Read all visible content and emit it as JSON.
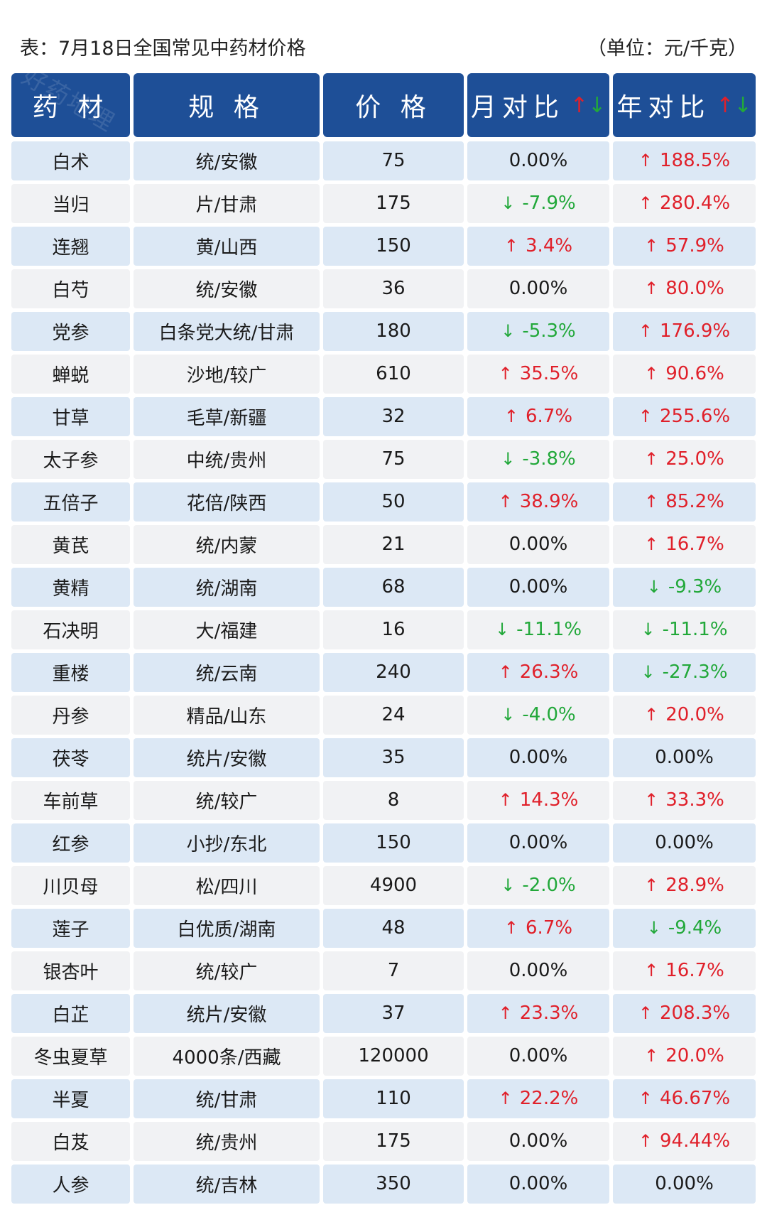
{
  "caption": {
    "title": "表：7月18日全国常见中药材价格",
    "unit": "（单位：元/千克）"
  },
  "watermark": "好药地理",
  "header": {
    "herb": "药 材",
    "spec": "规 格",
    "price": "价 格",
    "month": "月对比",
    "year": "年对比",
    "arrow_up": "↑",
    "arrow_down": "↓"
  },
  "colors": {
    "header_bg": "#1e4f97",
    "row_odd": "#dce8f5",
    "row_even": "#f1f2f4",
    "up": "#e0202a",
    "down": "#22a83a"
  },
  "rows": [
    {
      "herb": "白术",
      "spec": "统/安徽",
      "price": "75",
      "month": "0.00%",
      "month_dir": "flat",
      "year": "188.5%",
      "year_dir": "up"
    },
    {
      "herb": "当归",
      "spec": "片/甘肃",
      "price": "175",
      "month": "-7.9%",
      "month_dir": "down",
      "year": "280.4%",
      "year_dir": "up"
    },
    {
      "herb": "连翘",
      "spec": "黄/山西",
      "price": "150",
      "month": "3.4%",
      "month_dir": "up",
      "year": "57.9%",
      "year_dir": "up"
    },
    {
      "herb": "白芍",
      "spec": "统/安徽",
      "price": "36",
      "month": "0.00%",
      "month_dir": "flat",
      "year": "80.0%",
      "year_dir": "up"
    },
    {
      "herb": "党参",
      "spec": "白条党大统/甘肃",
      "price": "180",
      "month": "-5.3%",
      "month_dir": "down",
      "year": "176.9%",
      "year_dir": "up"
    },
    {
      "herb": "蝉蜕",
      "spec": "沙地/较广",
      "price": "610",
      "month": "35.5%",
      "month_dir": "up",
      "year": "90.6%",
      "year_dir": "up"
    },
    {
      "herb": "甘草",
      "spec": "毛草/新疆",
      "price": "32",
      "month": "6.7%",
      "month_dir": "up",
      "year": "255.6%",
      "year_dir": "up"
    },
    {
      "herb": "太子参",
      "spec": "中统/贵州",
      "price": "75",
      "month": "-3.8%",
      "month_dir": "down",
      "year": "25.0%",
      "year_dir": "up"
    },
    {
      "herb": "五倍子",
      "spec": "花倍/陕西",
      "price": "50",
      "month": "38.9%",
      "month_dir": "up",
      "year": "85.2%",
      "year_dir": "up"
    },
    {
      "herb": "黄芪",
      "spec": "统/内蒙",
      "price": "21",
      "month": "0.00%",
      "month_dir": "flat",
      "year": "16.7%",
      "year_dir": "up"
    },
    {
      "herb": "黄精",
      "spec": "统/湖南",
      "price": "68",
      "month": "0.00%",
      "month_dir": "flat",
      "year": "-9.3%",
      "year_dir": "down"
    },
    {
      "herb": "石决明",
      "spec": "大/福建",
      "price": "16",
      "month": "-11.1%",
      "month_dir": "down",
      "year": "-11.1%",
      "year_dir": "down"
    },
    {
      "herb": "重楼",
      "spec": "统/云南",
      "price": "240",
      "month": "26.3%",
      "month_dir": "up",
      "year": "-27.3%",
      "year_dir": "down"
    },
    {
      "herb": "丹参",
      "spec": "精品/山东",
      "price": "24",
      "month": "-4.0%",
      "month_dir": "down",
      "year": "20.0%",
      "year_dir": "up"
    },
    {
      "herb": "茯苓",
      "spec": "统片/安徽",
      "price": "35",
      "month": "0.00%",
      "month_dir": "flat",
      "year": "0.00%",
      "year_dir": "flat"
    },
    {
      "herb": "车前草",
      "spec": "统/较广",
      "price": "8",
      "month": "14.3%",
      "month_dir": "up",
      "year": "33.3%",
      "year_dir": "up"
    },
    {
      "herb": "红参",
      "spec": "小抄/东北",
      "price": "150",
      "month": "0.00%",
      "month_dir": "flat",
      "year": "0.00%",
      "year_dir": "flat"
    },
    {
      "herb": "川贝母",
      "spec": "松/四川",
      "price": "4900",
      "month": "-2.0%",
      "month_dir": "down",
      "year": "28.9%",
      "year_dir": "up"
    },
    {
      "herb": "莲子",
      "spec": "白优质/湖南",
      "price": "48",
      "month": "6.7%",
      "month_dir": "up",
      "year": "-9.4%",
      "year_dir": "down"
    },
    {
      "herb": "银杏叶",
      "spec": "统/较广",
      "price": "7",
      "month": "0.00%",
      "month_dir": "flat",
      "year": "16.7%",
      "year_dir": "up"
    },
    {
      "herb": "白芷",
      "spec": "统片/安徽",
      "price": "37",
      "month": "23.3%",
      "month_dir": "up",
      "year": "208.3%",
      "year_dir": "up"
    },
    {
      "herb": "冬虫夏草",
      "spec": "4000条/西藏",
      "price": "120000",
      "month": "0.00%",
      "month_dir": "flat",
      "year": "20.0%",
      "year_dir": "up"
    },
    {
      "herb": "半夏",
      "spec": "统/甘肃",
      "price": "110",
      "month": "22.2%",
      "month_dir": "up",
      "year": "46.67%",
      "year_dir": "up"
    },
    {
      "herb": "白芨",
      "spec": "统/贵州",
      "price": "175",
      "month": "0.00%",
      "month_dir": "flat",
      "year": "94.44%",
      "year_dir": "up"
    },
    {
      "herb": "人参",
      "spec": "统/吉林",
      "price": "350",
      "month": "0.00%",
      "month_dir": "flat",
      "year": "0.00%",
      "year_dir": "flat"
    }
  ]
}
